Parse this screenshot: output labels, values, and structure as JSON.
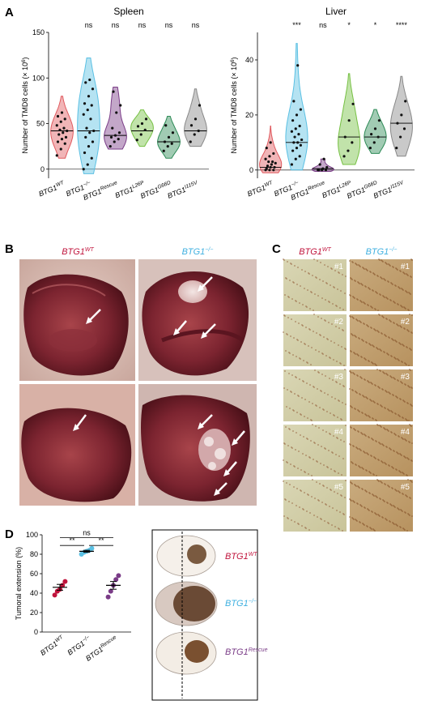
{
  "panels": {
    "A": "A",
    "B": "B",
    "C": "C",
    "D": "D"
  },
  "chart_data": [
    {
      "type": "violin",
      "title": "Spleen",
      "ylabel": "Number of TMD8 cells (× 10^6)",
      "ylabel_pre": "Number of TMD8 cells (×",
      "ylabel_base": "10",
      "ylabel_exp": "6",
      "ylabel_post": ")",
      "ylim": [
        -10,
        150
      ],
      "yticks": [
        0,
        50,
        100,
        150
      ],
      "groups": [
        {
          "base": "BTG1",
          "sup": "WT",
          "color": "#e05a5f",
          "points": [
            15,
            22,
            28,
            30,
            33,
            35,
            38,
            40,
            42,
            43,
            45,
            48,
            52,
            55,
            58,
            62
          ],
          "median": 42,
          "min": 12,
          "max": 80
        },
        {
          "base": "BTG1",
          "sup": "−/−",
          "color": "#5bc0e3",
          "points": [
            0,
            5,
            12,
            18,
            25,
            30,
            35,
            40,
            42,
            45,
            55,
            60,
            65,
            70,
            72,
            80,
            88,
            95,
            98
          ],
          "median": 42,
          "min": -5,
          "max": 122
        },
        {
          "base": "BTG1",
          "sup": "Rescue",
          "color": "#7a3c87",
          "points": [
            25,
            30,
            33,
            35,
            37,
            40,
            45,
            62,
            70,
            85
          ],
          "median": 37,
          "min": 22,
          "max": 90
        },
        {
          "base": "BTG1",
          "sup": "L26P",
          "color": "#76c043",
          "points": [
            32,
            38,
            43,
            47,
            50,
            55
          ],
          "median": 42,
          "min": 25,
          "max": 65
        },
        {
          "base": "BTG1",
          "sup": "G66D",
          "color": "#2e8b57",
          "points": [
            20,
            25,
            28,
            30,
            35,
            40,
            48
          ],
          "median": 30,
          "min": 12,
          "max": 58
        },
        {
          "base": "BTG1",
          "sup": "I115V",
          "color": "#888888",
          "points": [
            30,
            38,
            42,
            48,
            55,
            70
          ],
          "median": 42,
          "min": 25,
          "max": 88
        }
      ],
      "significance": [
        "",
        "ns",
        "ns",
        "ns",
        "ns",
        "ns"
      ]
    },
    {
      "type": "violin",
      "title": "Liver",
      "ylabel": "Number of TMD8 cells (× 10^6)",
      "ylabel_pre": "Number of TMD8 cells (×",
      "ylabel_base": "10",
      "ylabel_exp": "6",
      "ylabel_post": ")",
      "ylim": [
        -3,
        50
      ],
      "yticks": [
        0,
        20,
        40
      ],
      "groups": [
        {
          "base": "BTG1",
          "sup": "WT",
          "color": "#e05a5f",
          "points": [
            0,
            0,
            0,
            0.5,
            1,
            1,
            1.5,
            2,
            2.5,
            3,
            3,
            4,
            5,
            6,
            8,
            10
          ],
          "median": 1,
          "min": -1,
          "max": 16
        },
        {
          "base": "BTG1",
          "sup": "−/−",
          "color": "#5bc0e3",
          "points": [
            2,
            4,
            5,
            7,
            8,
            9,
            10,
            10,
            11,
            12,
            13,
            14,
            15,
            16,
            18,
            20,
            22,
            25,
            38
          ],
          "median": 10,
          "min": 0,
          "max": 46
        },
        {
          "base": "BTG1",
          "sup": "Rescue",
          "color": "#7a3c87",
          "points": [
            0,
            0,
            0,
            0,
            0.5,
            1,
            2,
            4
          ],
          "median": 0.5,
          "min": -0.5,
          "max": 4
        },
        {
          "base": "BTG1",
          "sup": "L26P",
          "color": "#76c043",
          "points": [
            5,
            7,
            10,
            12,
            18,
            24
          ],
          "median": 12,
          "min": 2,
          "max": 35
        },
        {
          "base": "BTG1",
          "sup": "G66D",
          "color": "#2e8b57",
          "points": [
            8,
            10,
            12,
            13,
            15,
            18
          ],
          "median": 12,
          "min": 6,
          "max": 22
        },
        {
          "base": "BTG1",
          "sup": "I115V",
          "color": "#888888",
          "points": [
            8,
            12,
            15,
            17,
            20,
            25
          ],
          "median": 17,
          "min": 5,
          "max": 34
        }
      ],
      "significance": [
        "",
        "***",
        "ns",
        "*",
        "*",
        "****"
      ]
    },
    {
      "type": "scatter",
      "ylabel": "Tumoral extension (%)",
      "ylim": [
        0,
        100
      ],
      "yticks": [
        0,
        20,
        40,
        60,
        80,
        100
      ],
      "groups": [
        {
          "base": "BTG1",
          "sup": "WT",
          "color": "#c0143c",
          "points": [
            38,
            42,
            44,
            48,
            52
          ],
          "mean": 46,
          "sem": 3
        },
        {
          "base": "BTG1",
          "sup": "−/−",
          "color": "#5bc0e3",
          "points": [
            80,
            82,
            83,
            84,
            86
          ],
          "mean": 83,
          "sem": 1
        },
        {
          "base": "BTG1",
          "sup": "Rescue",
          "color": "#7a3c87",
          "points": [
            36,
            42,
            48,
            54,
            58
          ],
          "mean": 48,
          "sem": 4
        }
      ],
      "brackets": [
        {
          "from": 0,
          "to": 2,
          "label": "ns"
        },
        {
          "from": 0,
          "to": 1,
          "label": "**"
        },
        {
          "from": 1,
          "to": 2,
          "label": "**"
        }
      ]
    }
  ],
  "photos_B": {
    "col_labels": [
      {
        "base": "BTG1",
        "sup": "WT",
        "color": "#c0143c"
      },
      {
        "base": "BTG1",
        "sup": "−/−",
        "color": "#3fb0e0"
      }
    ]
  },
  "micro_C": {
    "col_labels": [
      {
        "base": "BTG1",
        "sup": "WT",
        "color": "#c0143c"
      },
      {
        "base": "BTG1",
        "sup": "−/−",
        "color": "#3fb0e0"
      }
    ],
    "row_labels": [
      "#1",
      "#2",
      "#3",
      "#4",
      "#5"
    ]
  },
  "sections_D": {
    "labels": [
      {
        "base": "BTG1",
        "sup": "WT",
        "color": "#c0143c"
      },
      {
        "base": "BTG1",
        "sup": "−/−",
        "color": "#3fb0e0"
      },
      {
        "base": "BTG1",
        "sup": "Rescue",
        "color": "#7a3c87"
      }
    ]
  }
}
